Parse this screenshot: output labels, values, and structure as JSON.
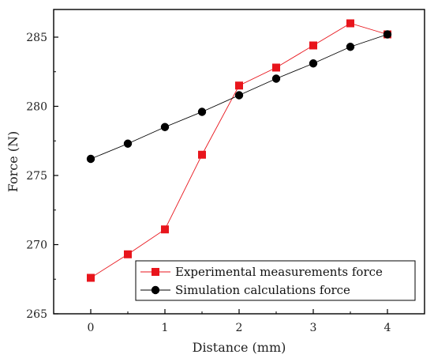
{
  "chart_data": {
    "type": "line",
    "title": "",
    "xlabel": "Distance (mm)",
    "ylabel": "Force (N)",
    "xlim": [
      -0.5,
      4.5
    ],
    "ylim": [
      265,
      287
    ],
    "xticks": [
      "0",
      "1",
      "2",
      "3",
      "4"
    ],
    "yticks": [
      "265",
      "270",
      "275",
      "280",
      "285"
    ],
    "grid": false,
    "legend_position": "bottom-right",
    "series": [
      {
        "name": "Experimental measurements force",
        "color": "#e8151c",
        "marker": "square",
        "x": [
          0,
          0.5,
          1,
          1.5,
          2,
          2.5,
          3,
          3.5,
          4
        ],
        "y": [
          267.6,
          269.3,
          271.1,
          276.5,
          281.5,
          282.8,
          284.4,
          286.0,
          285.2
        ]
      },
      {
        "name": "Simulation calculations force",
        "color": "#000000",
        "marker": "circle",
        "x": [
          0,
          0.5,
          1,
          1.5,
          2,
          2.5,
          3,
          3.5,
          4
        ],
        "y": [
          276.2,
          277.3,
          278.5,
          279.6,
          280.8,
          282.0,
          283.1,
          284.3,
          285.2
        ]
      }
    ]
  }
}
